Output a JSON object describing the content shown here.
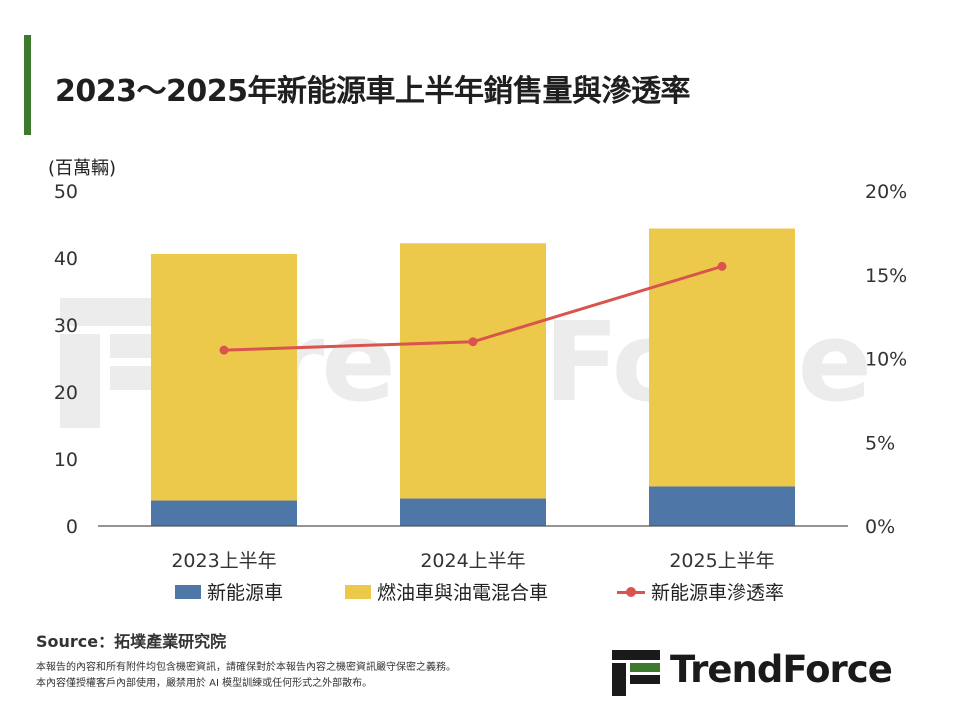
{
  "title": "2023～2025年新能源車上半年銷售量與滲透率",
  "chart_data": {
    "type": "bar",
    "stacked": true,
    "categories": [
      "2023上半年",
      "2024上半年",
      "2025上半年"
    ],
    "series": [
      {
        "name": "新能源車",
        "type": "bar",
        "axis": "left",
        "color": "#4e76a6",
        "values": [
          3.8,
          4.1,
          5.9
        ]
      },
      {
        "name": "燃油車與油電混合車",
        "type": "bar",
        "axis": "left",
        "color": "#ecc94b",
        "values": [
          36.8,
          38.1,
          38.5
        ]
      },
      {
        "name": "新能源車滲透率",
        "type": "line",
        "axis": "right",
        "color": "#d9534f",
        "values": [
          10.5,
          11.0,
          15.5
        ]
      }
    ],
    "y_left": {
      "label": "(百萬輛)",
      "lim": [
        0,
        50
      ],
      "ticks": [
        "0",
        "10",
        "20",
        "30",
        "40",
        "50"
      ]
    },
    "y_right": {
      "lim": [
        0,
        20
      ],
      "ticks": [
        "0%",
        "5%",
        "10%",
        "15%",
        "20%"
      ]
    },
    "legend_position": "bottom",
    "grid": false
  },
  "legend": [
    {
      "label": "新能源車",
      "kind": "bar",
      "color": "#4e76a6"
    },
    {
      "label": "燃油車與油電混合車",
      "kind": "bar",
      "color": "#ecc94b"
    },
    {
      "label": "新能源車滲透率",
      "kind": "line",
      "color": "#d9534f"
    }
  ],
  "source": "Source：拓墣產業研究院",
  "notes": [
    "本報告的內容和所有附件均包含機密資訊，請確保對於本報告內容之機密資訊嚴守保密之義務。",
    "本內容僅授權客戶內部使用，嚴禁用於 AI 模型訓練或任何形式之外部散布。"
  ],
  "brand": "TrendForce",
  "watermark": "TrendForce"
}
